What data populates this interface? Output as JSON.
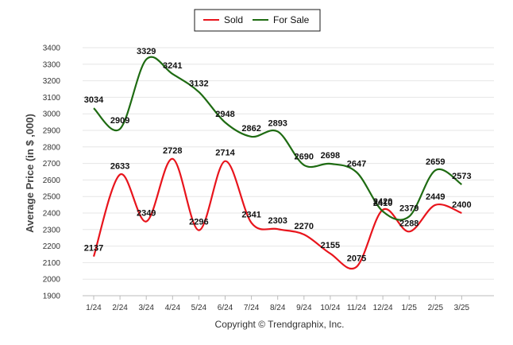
{
  "chart_data": {
    "type": "line",
    "categories": [
      "1/24",
      "2/24",
      "3/24",
      "4/24",
      "5/24",
      "6/24",
      "7/24",
      "8/24",
      "9/24",
      "10/24",
      "11/24",
      "12/24",
      "1/25",
      "2/25",
      "3/25"
    ],
    "series": [
      {
        "name": "Sold",
        "color": "#e8141c",
        "values": [
          2137,
          2633,
          2349,
          2728,
          2296,
          2714,
          2341,
          2303,
          2270,
          2155,
          2075,
          2420,
          2288,
          2449,
          2400
        ]
      },
      {
        "name": "For Sale",
        "color": "#1e6b12",
        "values": [
          3034,
          2909,
          3329,
          3241,
          3132,
          2948,
          2862,
          2893,
          2690,
          2698,
          2647,
          2410,
          2379,
          2659,
          2573
        ]
      }
    ],
    "ylabel": "Average Price (in $ ,000)",
    "xlabel": "",
    "ylim": [
      1900,
      3400
    ],
    "yticks": [
      1900,
      2000,
      2100,
      2200,
      2300,
      2400,
      2500,
      2600,
      2700,
      2800,
      2900,
      3000,
      3100,
      3200,
      3300,
      3400
    ],
    "grid": true,
    "legend_position": "top-center"
  },
  "copyright": "Copyright © Trendgraphix, Inc."
}
